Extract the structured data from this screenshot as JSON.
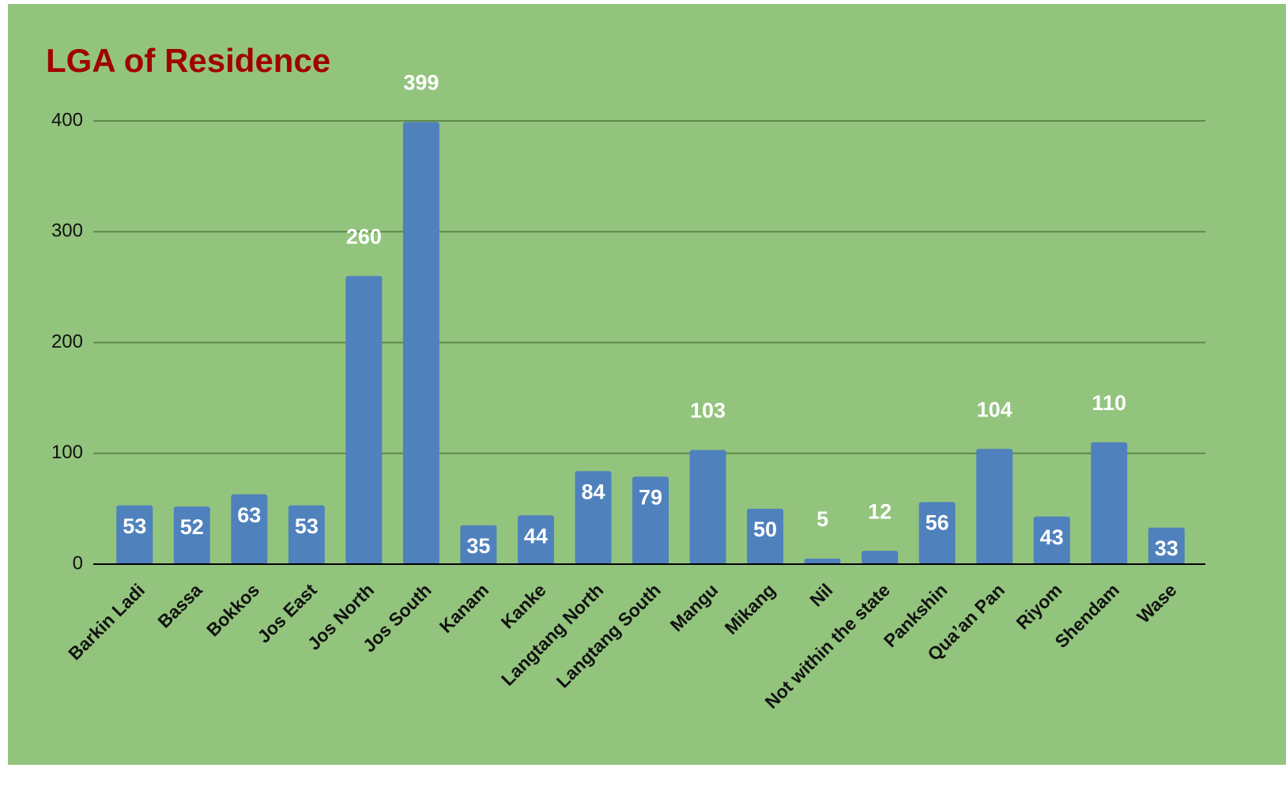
{
  "chart_data": {
    "type": "bar",
    "title": "LGA of Residence",
    "categories": [
      "Barkin Ladi",
      "Bassa",
      "Bokkos",
      "Jos East",
      "Jos North",
      "Jos South",
      "Kanam",
      "Kanke",
      "Langtang North",
      "Langtang South",
      "Mangu",
      "Mikang",
      "Nil",
      "Not within the state",
      "Pankshin",
      "Qua’an Pan",
      "Riyom",
      "Shendam",
      "Wase"
    ],
    "values": [
      53,
      52,
      63,
      53,
      260,
      399,
      35,
      44,
      84,
      79,
      103,
      50,
      5,
      12,
      56,
      104,
      43,
      110,
      33
    ],
    "color": "#4f81bd",
    "ylim": [
      0,
      400
    ],
    "yticks": [
      0,
      100,
      200,
      300,
      400
    ],
    "grid": true
  }
}
